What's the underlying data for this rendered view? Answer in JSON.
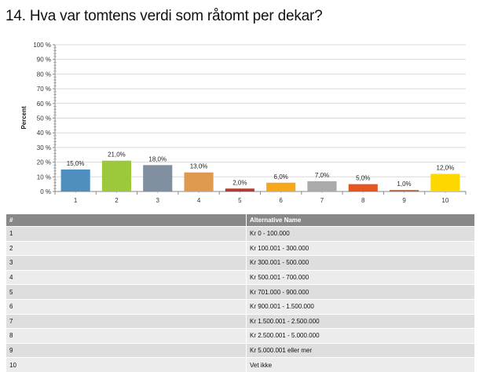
{
  "title": "14. Hva var tomtens verdi som råtomt per dekar?",
  "chart_data": {
    "type": "bar",
    "title": "14. Hva var tomtens verdi som råtomt per dekar?",
    "xlabel": "",
    "ylabel": "Percent",
    "ylim": [
      0,
      100
    ],
    "yticks": [
      "0 %",
      "10 %",
      "20 %",
      "30 %",
      "40 %",
      "50 %",
      "60 %",
      "70 %",
      "80 %",
      "90 %",
      "100 %"
    ],
    "grid": true,
    "categories": [
      "1",
      "2",
      "3",
      "4",
      "5",
      "6",
      "7",
      "8",
      "9",
      "10"
    ],
    "values": [
      15.0,
      21.0,
      18.0,
      13.0,
      2.0,
      6.0,
      7.0,
      5.0,
      1.0,
      12.0
    ],
    "data_labels": [
      "15,0%",
      "21,0%",
      "18,0%",
      "13,0%",
      "2,0%",
      "6,0%",
      "7,0%",
      "5,0%",
      "1,0%",
      "12,0%"
    ],
    "colors": [
      "#4f8fc0",
      "#9cc83c",
      "#7f8f9f",
      "#df9a50",
      "#b83a2e",
      "#f6a81c",
      "#aaaaaa",
      "#e5561e",
      "#b3664a",
      "#ffd700"
    ]
  },
  "table": {
    "headers": [
      "#",
      "Alternative Name"
    ],
    "rows": [
      [
        "1",
        "Kr 0 - 100.000"
      ],
      [
        "2",
        "Kr 100.001 - 300.000"
      ],
      [
        "3",
        "Kr 300.001 - 500.000"
      ],
      [
        "4",
        "Kr 500.001 - 700.000"
      ],
      [
        "5",
        "Kr 701.000 - 900.000"
      ],
      [
        "6",
        "Kr 900.001 - 1.500.000"
      ],
      [
        "7",
        "Kr 1.500.001 - 2.500.000"
      ],
      [
        "8",
        "Kr 2.500.001 - 5.000.000"
      ],
      [
        "9",
        "Kr 5.000.001 eller mer"
      ],
      [
        "10",
        "Vet ikke"
      ]
    ]
  }
}
